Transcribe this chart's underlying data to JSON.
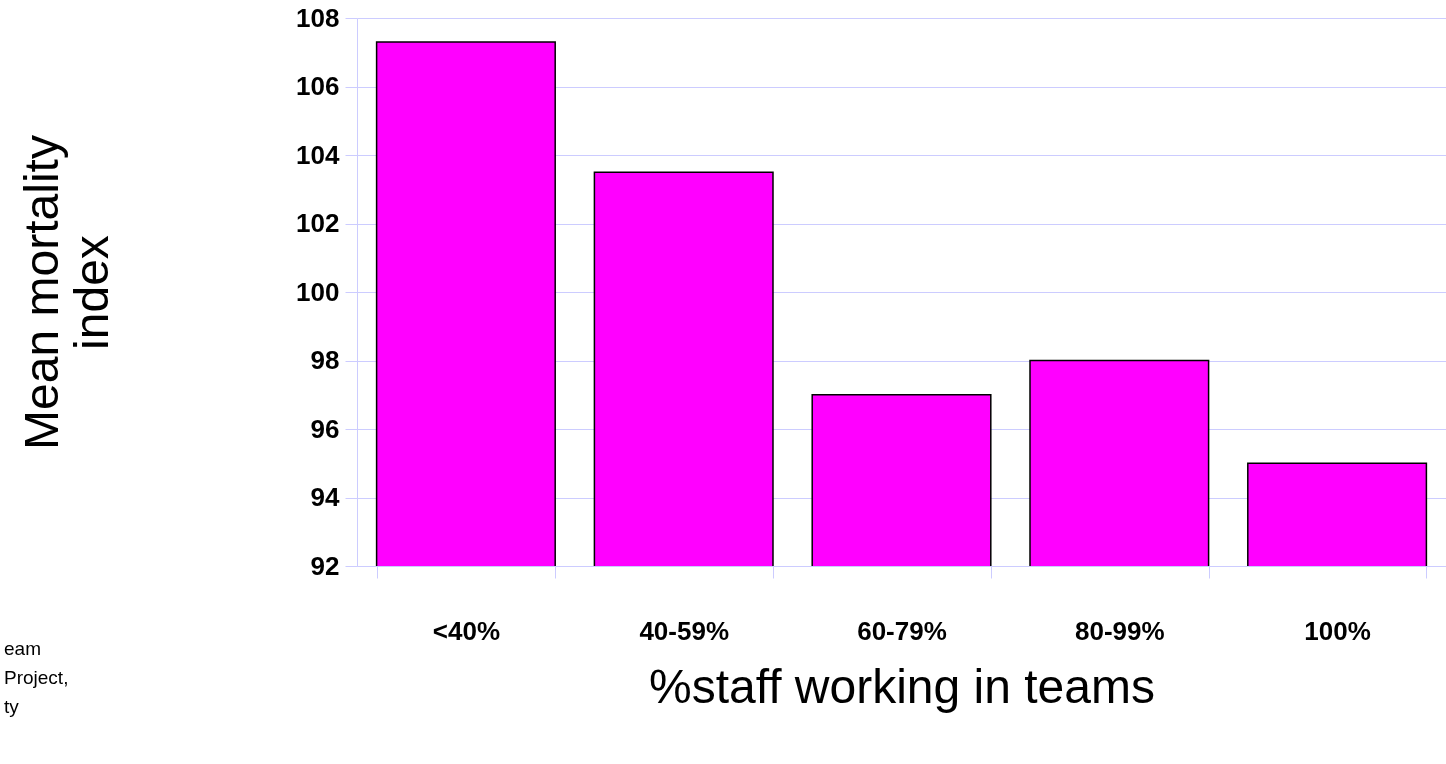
{
  "chart_data": {
    "type": "bar",
    "xlabel": "%staff working in teams",
    "ylabel": "Mean mortality\nindex",
    "categories": [
      "<40%",
      "40-59%",
      "60-79%",
      "80-99%",
      "100%"
    ],
    "values": [
      107.3,
      103.5,
      97.0,
      98.0,
      95.0
    ],
    "color": "#ff00ff",
    "ylim": [
      92,
      108
    ],
    "yticks": [
      92,
      94,
      96,
      98,
      100,
      102,
      104,
      106,
      108
    ],
    "grid": "y",
    "annotations": [
      "eam\nProject,\nty"
    ]
  }
}
